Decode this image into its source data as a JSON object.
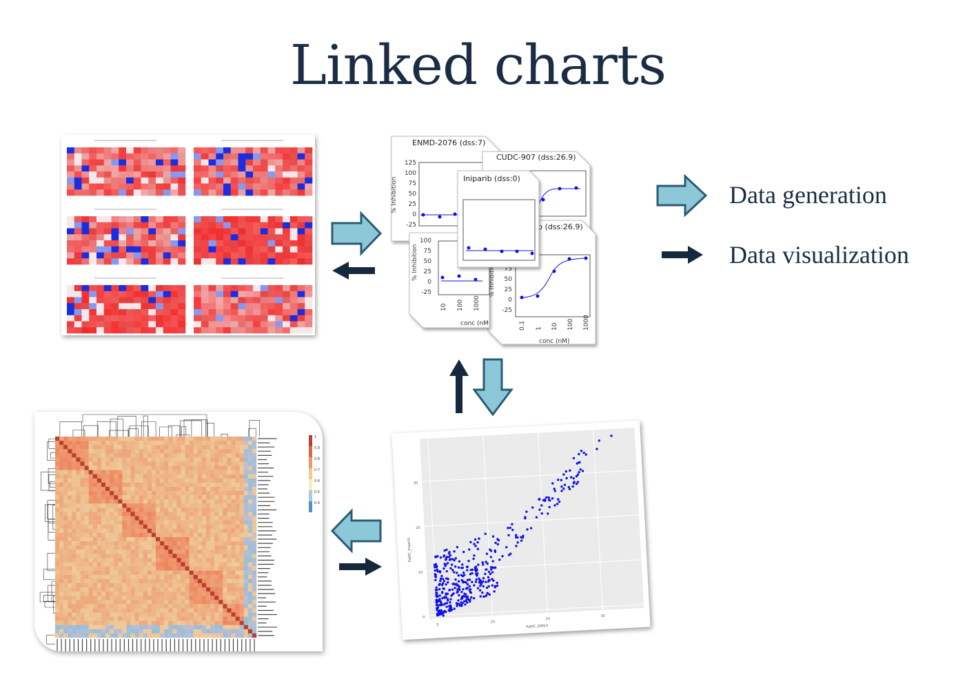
{
  "title": "Linked charts",
  "legend": {
    "generation_label": "Data generation",
    "visualization_label": "Data visualization"
  },
  "colors": {
    "title": "#1a2d45",
    "arrow_fill": "#8cc8d8",
    "arrow_stroke": "#2b5a73",
    "dark_arrow": "#16283d",
    "heat_high": "#e8302c",
    "heat_mid": "#f8f0f0",
    "heat_low": "#2030d8",
    "curve": "#1010e0"
  },
  "dose_cards": [
    {
      "title": "ENMD-2076 (dss:7)",
      "yticks": [
        "125",
        "100",
        "75",
        "50",
        "25",
        "0",
        "-25"
      ],
      "ylabel": "% Inhibition"
    },
    {
      "title": "CUDC-907 (dss:26.9)"
    },
    {
      "title": "Iniparib (dss:0)"
    },
    {
      "title": "b (dss:26.9)",
      "yticks": [
        "75",
        "50",
        "25",
        "0",
        "-25"
      ],
      "ylabel": "% Inhibition",
      "xticks": [
        "0.1",
        "1",
        "10",
        "100",
        "1000"
      ],
      "xlabel": "conc (nM)"
    },
    {
      "title": "",
      "yticks": [
        "100",
        "75",
        "50",
        "25",
        "0",
        "-25"
      ],
      "ylabel": "% Inhibition",
      "xticks": [
        "10",
        "100",
        "1000"
      ],
      "xlabel": "conc (nM"
    }
  ],
  "scatter": {
    "xlabel": "PaEfC_DMSO",
    "ylabel": "PaEfC_Iniparib",
    "xticks": [
      "0",
      "10",
      "20",
      "30"
    ],
    "yticks": [
      "0",
      "10",
      "20",
      "30"
    ]
  },
  "correlation": {
    "scale_ticks": [
      "1",
      "0.9",
      "0.8",
      "0.7",
      "0.6",
      "0.5",
      "0.4"
    ]
  }
}
